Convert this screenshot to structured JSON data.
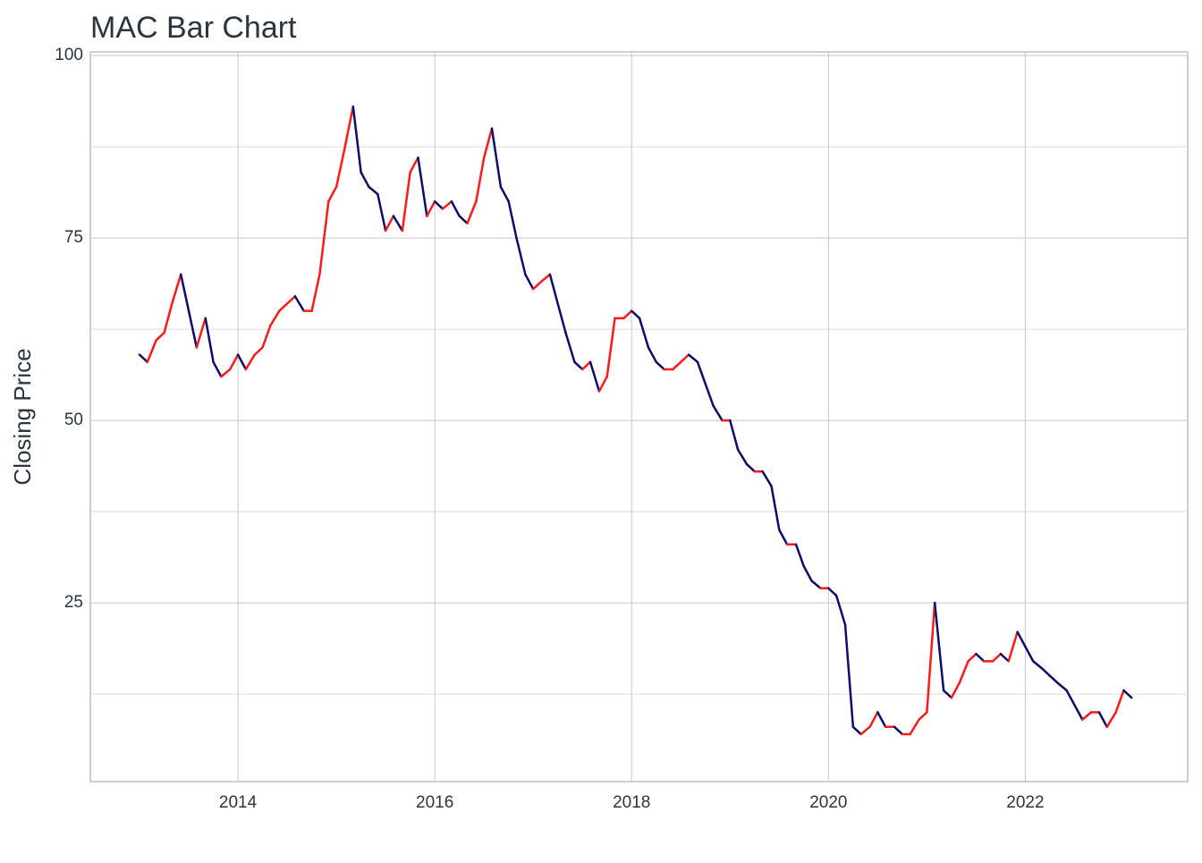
{
  "chart_data": {
    "type": "line",
    "title": "MAC Bar Chart",
    "y_label": "Closing Price",
    "x": [
      2013.0,
      2013.08,
      2013.17,
      2013.25,
      2013.33,
      2013.42,
      2013.5,
      2013.58,
      2013.67,
      2013.75,
      2013.83,
      2013.92,
      2014.0,
      2014.08,
      2014.17,
      2014.25,
      2014.33,
      2014.42,
      2014.5,
      2014.58,
      2014.67,
      2014.75,
      2014.83,
      2014.92,
      2015.0,
      2015.08,
      2015.17,
      2015.25,
      2015.33,
      2015.42,
      2015.5,
      2015.58,
      2015.67,
      2015.75,
      2015.83,
      2015.92,
      2016.0,
      2016.08,
      2016.17,
      2016.25,
      2016.33,
      2016.42,
      2016.5,
      2016.58,
      2016.67,
      2016.75,
      2016.83,
      2016.92,
      2017.0,
      2017.08,
      2017.17,
      2017.25,
      2017.33,
      2017.42,
      2017.5,
      2017.58,
      2017.67,
      2017.75,
      2017.83,
      2017.92,
      2018.0,
      2018.08,
      2018.17,
      2018.25,
      2018.33,
      2018.42,
      2018.5,
      2018.58,
      2018.67,
      2018.75,
      2018.83,
      2018.92,
      2019.0,
      2019.08,
      2019.17,
      2019.25,
      2019.33,
      2019.42,
      2019.5,
      2019.58,
      2019.67,
      2019.75,
      2019.83,
      2019.92,
      2020.0,
      2020.08,
      2020.17,
      2020.25,
      2020.33,
      2020.42,
      2020.5,
      2020.58,
      2020.67,
      2020.75,
      2020.83,
      2020.92,
      2021.0,
      2021.08,
      2021.17,
      2021.25,
      2021.33,
      2021.42,
      2021.5,
      2021.58,
      2021.67,
      2021.75,
      2021.83,
      2021.92,
      2022.0,
      2022.08,
      2022.17,
      2022.25,
      2022.33,
      2022.42,
      2022.5,
      2022.58,
      2022.67,
      2022.75,
      2022.83,
      2022.92,
      2023.0,
      2023.08
    ],
    "values": [
      59,
      58,
      61,
      62,
      66,
      70,
      65,
      60,
      64,
      58,
      56,
      57,
      59,
      57,
      59,
      60,
      63,
      65,
      66,
      67,
      65,
      65,
      70,
      80,
      82,
      87,
      93,
      84,
      82,
      81,
      76,
      78,
      76,
      84,
      86,
      78,
      80,
      79,
      80,
      78,
      77,
      80,
      86,
      90,
      82,
      80,
      75,
      70,
      68,
      69,
      70,
      66,
      62,
      58,
      57,
      58,
      54,
      56,
      64,
      64,
      65,
      64,
      60,
      58,
      57,
      57,
      58,
      59,
      58,
      55,
      52,
      50,
      50,
      46,
      44,
      43,
      43,
      41,
      35,
      33,
      33,
      30,
      28,
      27,
      27,
      26,
      22,
      8,
      7,
      8,
      10,
      8,
      8,
      7,
      7,
      9,
      10,
      25,
      13,
      12,
      14,
      17,
      18,
      17,
      17,
      18,
      17,
      21,
      19,
      17,
      16,
      15,
      14,
      13,
      11,
      9,
      10,
      10,
      8,
      10,
      13,
      12
    ],
    "color": "#0d0d6b",
    "up_color": "#ff1a1a",
    "xlim": [
      2012.5,
      2023.65
    ],
    "xticks": [
      2014,
      2016,
      2018,
      2020,
      2022
    ],
    "ylim": [
      0.5,
      100.5
    ],
    "yticks": [
      25,
      50,
      75,
      100
    ],
    "y_minor_ticks": [
      12.5,
      37.5,
      62.5,
      87.5
    ],
    "grid": true
  }
}
